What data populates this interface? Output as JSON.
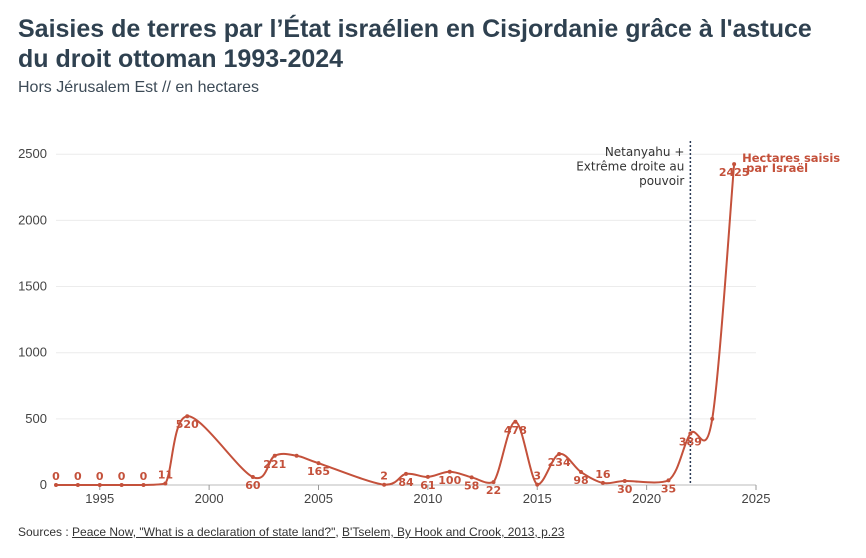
{
  "header": {
    "title": "Saisies de terres par l’État israélien en Cisjordanie grâce à l'astuce du droit ottoman 1993-2024",
    "subtitle": "Hors Jérusalem Est // en hectares"
  },
  "footer": {
    "prefix": "Sources : ",
    "link1": "Peace Now, \"What is a declaration of state land?\"",
    "separator": ", ",
    "link2": "B'Tselem, By Hook and Crook, 2013, p.23"
  },
  "chart_data": {
    "type": "line",
    "title": "Saisies de terres par l’État israélien en Cisjordanie grâce à l'astuce du droit ottoman 1993-2024",
    "subtitle": "Hors Jérusalem Est // en hectares",
    "xlabel": "",
    "ylabel": "",
    "xlim": [
      1993,
      2025
    ],
    "ylim": [
      0,
      2600
    ],
    "x_ticks": [
      1995,
      2000,
      2005,
      2010,
      2015,
      2020,
      2025
    ],
    "y_ticks": [
      0,
      500,
      1000,
      1500,
      2000,
      2500
    ],
    "grid": "horizontal",
    "series": [
      {
        "name": "Hectares saisis par Israël",
        "color": "#c4513b",
        "x": [
          1993,
          1994,
          1995,
          1996,
          1997,
          1998,
          1999,
          2002,
          2003,
          2004,
          2005,
          2008,
          2009,
          2010,
          2011,
          2012,
          2013,
          2014,
          2015,
          2016,
          2017,
          2018,
          2019,
          2021,
          2022,
          2023,
          2024
        ],
        "values": [
          0,
          0,
          0,
          0,
          0,
          11,
          520,
          60,
          221,
          221,
          165,
          2,
          84,
          61,
          100,
          58,
          22,
          478,
          3,
          234,
          98,
          16,
          30,
          35,
          389,
          500,
          2425
        ],
        "labels": [
          "0",
          "0",
          "0",
          "0",
          "0",
          "11",
          "520",
          "60",
          "221",
          "",
          "165",
          "2",
          "84",
          "61",
          "100",
          "58",
          "22",
          "478",
          "3",
          "234",
          "98",
          "16",
          "30",
          "35",
          "389",
          "",
          "2425"
        ]
      }
    ],
    "annotations": [
      {
        "x": 2022,
        "lines": [
          "Netanyahu +",
          "Extrême droite au",
          "pouvoir"
        ]
      }
    ]
  }
}
